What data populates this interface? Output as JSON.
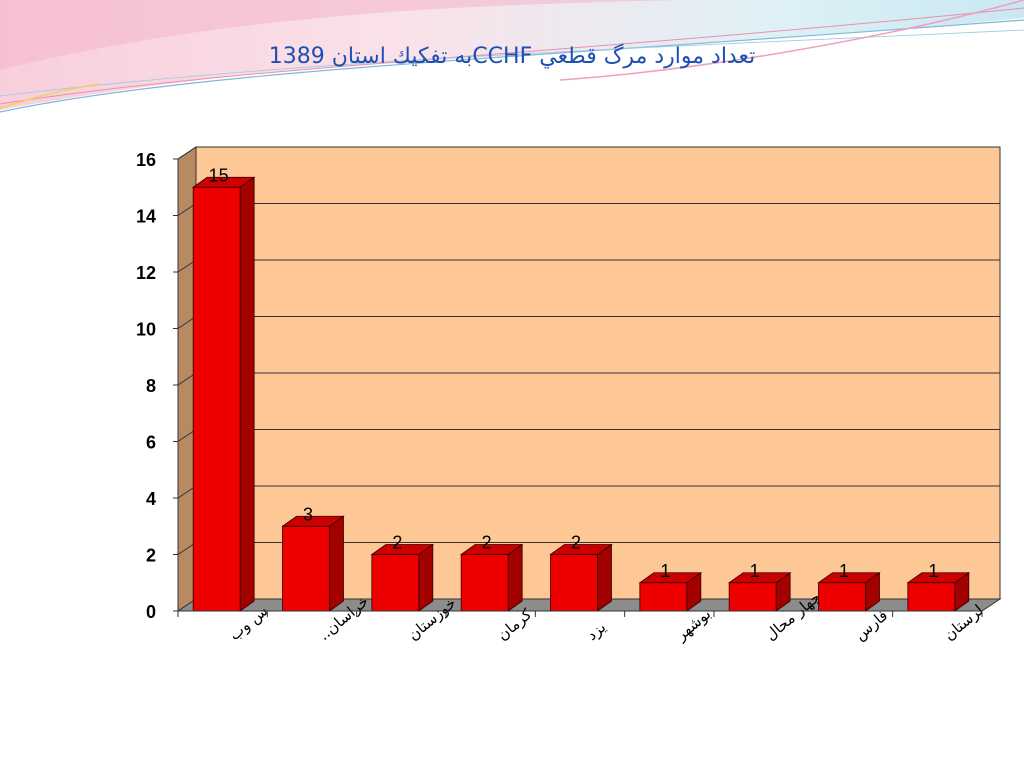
{
  "slide": {
    "title": "تعداد موارد مرگ قطعي CCHFبه تفكيك استان 1389"
  },
  "colors": {
    "bar_front": "#ee0000",
    "bar_side": "#a30000",
    "bar_top": "#cc0000",
    "plot_back": "#fdc895",
    "plot_wall": "#b88a62",
    "floor": "#8c8c8c",
    "title": "#1f4fb3"
  },
  "chart_data": {
    "type": "bar",
    "title": "",
    "xlabel": "",
    "ylabel": "",
    "ylim": [
      0,
      16
    ],
    "y_ticks": [
      0,
      2,
      4,
      6,
      8,
      10,
      12,
      14,
      16
    ],
    "grid": true,
    "legend": "none",
    "style": "3d-column",
    "categories": [
      "س وب",
      "خراسان..",
      "خوزستان",
      "كرمان",
      "يزد",
      "بوشهر",
      "چهار محال",
      "فارس",
      "لرستان"
    ],
    "values": [
      15,
      3,
      2,
      2,
      2,
      1,
      1,
      1,
      1
    ],
    "data_labels": [
      "15",
      "3",
      "2",
      "2",
      "2",
      "1",
      "1",
      "1",
      "1"
    ]
  }
}
